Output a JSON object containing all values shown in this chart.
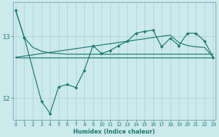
{
  "xlabel": "Humidex (Indice chaleur)",
  "bg_color": "#cce9ec",
  "grid_color": "#aad4d8",
  "line_color": "#1a7a6e",
  "x_ticks": [
    0,
    1,
    2,
    3,
    4,
    5,
    6,
    7,
    8,
    9,
    10,
    11,
    12,
    13,
    14,
    15,
    16,
    17,
    18,
    19,
    20,
    21,
    22,
    23
  ],
  "y_ticks": [
    12,
    13
  ],
  "ylim": [
    11.65,
    13.55
  ],
  "xlim": [
    -0.3,
    23.3
  ],
  "line1_x": [
    0,
    1,
    2,
    3,
    4,
    5,
    6,
    7,
    8,
    9,
    10,
    11,
    12,
    13,
    14,
    15,
    16,
    17,
    18,
    19,
    20,
    21,
    22,
    23
  ],
  "line1_y": [
    13.42,
    12.98,
    12.82,
    12.76,
    12.73,
    12.72,
    12.71,
    12.71,
    12.71,
    12.71,
    12.71,
    12.71,
    12.71,
    12.71,
    12.71,
    12.71,
    12.71,
    12.71,
    12.71,
    12.71,
    12.71,
    12.71,
    12.71,
    12.71
  ],
  "line2_x": [
    0,
    1,
    2,
    3,
    4,
    5,
    6,
    7,
    8,
    9,
    10,
    11,
    12,
    13,
    14,
    15,
    16,
    17,
    18,
    19,
    20,
    21,
    22,
    23
  ],
  "line2_y": [
    12.66,
    12.66,
    12.66,
    12.66,
    12.66,
    12.66,
    12.66,
    12.66,
    12.66,
    12.66,
    12.66,
    12.66,
    12.66,
    12.66,
    12.66,
    12.66,
    12.66,
    12.66,
    12.66,
    12.66,
    12.66,
    12.66,
    12.66,
    12.66
  ],
  "line3_x": [
    0,
    1,
    2,
    3,
    4,
    5,
    6,
    7,
    8,
    9,
    10,
    11,
    12,
    13,
    14,
    15,
    16,
    17,
    18,
    19,
    20,
    21,
    22,
    23
  ],
  "line3_y": [
    12.66,
    12.68,
    12.7,
    12.72,
    12.74,
    12.76,
    12.78,
    12.8,
    12.82,
    12.84,
    12.86,
    12.88,
    12.9,
    12.92,
    12.94,
    12.96,
    12.98,
    13.0,
    13.02,
    12.9,
    12.85,
    12.83,
    12.82,
    12.66
  ],
  "main_x": [
    0,
    1,
    3,
    4,
    5,
    6,
    7,
    8,
    9,
    10,
    11,
    12,
    13,
    14,
    15,
    16,
    17,
    18,
    19,
    20,
    21,
    22,
    23
  ],
  "main_y": [
    13.42,
    12.98,
    11.95,
    11.75,
    12.18,
    12.22,
    12.17,
    12.45,
    12.85,
    12.72,
    12.77,
    12.85,
    12.92,
    13.05,
    13.08,
    13.1,
    12.83,
    12.97,
    12.85,
    13.05,
    13.05,
    12.92,
    12.66
  ]
}
